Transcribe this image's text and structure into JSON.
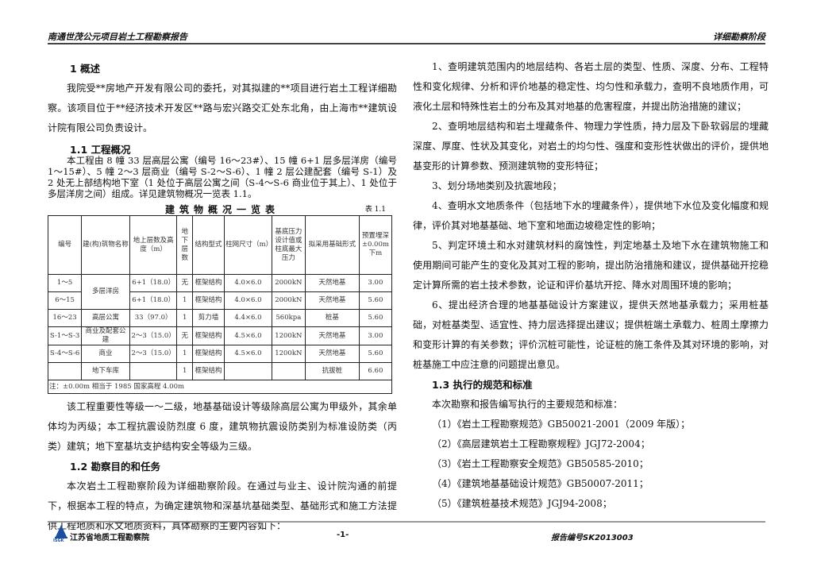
{
  "header": {
    "left": "南通世茂公元项目岩土工程勘察报告",
    "right": "详细勘察阶段"
  },
  "footer": {
    "org": "江苏省地质工程勘察院",
    "logo_text": "JSGK",
    "page": "-1-",
    "report_no": "报告编号SK2013003"
  },
  "left": {
    "h1": "1 概述",
    "p1": "我院受**房地产开发有限公司的委托，对其拟建的**项目进行岩土工程详细勘察。该项目位于**经济技术开发区**路与宏兴路交汇处东北角，由上海市**建筑设计院有限公司负责设计。",
    "h11": "1.1 工程概况",
    "p11": "本工程由 8 幢 33 层高层公寓（编号 16～23#）、15 幢 6+1 层多层洋房（编号 1～15#）、5 幢 2～3 层商业（编号 S-2～S-6）、1 幢 2 层公建配套（编号 S-1）及 2 处无上部结构地下室（1 处位于高层公寓之间（S-4～S-6 商业位于其上）、1 处位于多层洋房之间）组成。详见建筑物概况一览表 1.1。",
    "table_title": "建筑物概况一览表",
    "table_no": "表 1.1",
    "table": {
      "headers": [
        "编号",
        "建(构)筑物名称",
        "地上层数及高度（m）",
        "地下层数",
        "结构型式",
        "柱网尺寸（m）",
        "基底压力设计值或柱底最大压力",
        "拟采用基础形式",
        "预置埋深±0.00m下m"
      ],
      "rows": [
        [
          "1～5",
          "多层洋房",
          "6+1（18.0）",
          "无",
          "框架结构",
          "4.0×6.0",
          "2000kN",
          "天然地基",
          "3.00"
        ],
        [
          "6～15",
          "",
          "6+1（18.0）",
          "1",
          "框架结构",
          "4.0×6.0",
          "2000kN",
          "天然地基",
          "5.60"
        ],
        [
          "16～23",
          "高层公寓",
          "33（97.0）",
          "1",
          "剪力墙",
          "4.4×6.0",
          "560kpa",
          "桩基",
          "5.60"
        ],
        [
          "S-1～S-3",
          "商业及配套公建",
          "2～3（15.0）",
          "无",
          "框架结构",
          "4.5×6.0",
          "1200kN",
          "天然地基",
          "3.00"
        ],
        [
          "S-4～S-6",
          "商业",
          "2～3（15.0）",
          "1",
          "框架结构",
          "4.5×6.0",
          "1200kN",
          "天然地基",
          "5.60"
        ],
        [
          "",
          "地下车库",
          "",
          "1",
          "框架结构",
          "",
          "",
          "抗拔桩",
          "6.60"
        ]
      ],
      "note": "注：±0.00m 相当于 1985 国家高程 4.00m"
    },
    "p12": "该工程重要性等级一～二级，地基基础设计等级除高层公寓为甲级外，其余单体均为丙级；本工程抗震设防烈度 6 度，建筑物抗震设防类别为标准设防类（丙类）建筑；地下室基坑支护结构安全等级为三级。",
    "h12": "1.2 勘察目的和任务",
    "p13": "本次岩土工程勘察阶段为详细勘察阶段。在通过与业主、设计院沟通的前提下，根据本工程的特点，为确定建筑物和深基坑基础类型、基础形式和施工方法提供工程地质和水文地质资料，具体勘察的主要内容如下："
  },
  "right": {
    "items": [
      "1、查明建筑范围内的地层结构、各岩土层的类型、性质、深度、分布、工程特性和变化规律、分析和评价地基的稳定性、均匀性和承载力，查明不良地质作用，可液化土层和特殊性岩土的分布及其对地基的危害程度，并提出防治措施的建议；",
      "2、查明地层结构和岩土埋藏条件、物理力学性质，持力层及下卧软弱层的埋藏深度、厚度、性状及其变化，对岩土的均匀性、强度和变形性状做出的评价，提供地基变形的计算参数、预测建筑物的变形特征；",
      "3、划分场地类别及抗震地段；",
      "4、查明水文地质条件（包括地下水的埋藏条件），提供地下水位及变化幅度和规律，评价其对地基基础、地下室和地面边坡稳定性的影响；",
      "5、判定环境土和水对建筑材料的腐蚀性，判定地基土及地下水在建筑物施工和使用期间可能产生的变化及其对工程的影响，提出防治措施和建议，提供基础开挖稳定计算所需的岩土技术参数，论证和评价基坑开挖、降水对周围环境的影响；",
      "6、提出经济合理的地基基础设计方案建议，提供天然地基承载力；采用桩基础，对桩基类型、适宜性、持力层选择提出建议；提供桩端土承载力、桩周土摩擦力和变形计算的有关参数；评价沉桩可能性，论证桩的施工条件及其对环境的影响，对桩基施工中应注意的问题提出意见。"
    ],
    "h13": "1.3 执行的规范和标准",
    "p_intro": "本次勘察和报告编写执行的主要规范和标准：",
    "standards": [
      "（1）《岩土工程勘察规范》GB50021-2001（2009 年版）；",
      "（2）《高层建筑岩土工程勘察规程》JGJ72-2004；",
      "（3）《岩土工程勘察安全规范》GB50585-2010；",
      "（4）《建筑地基基础设计规范》GB50007-2011；",
      "（5）《建筑桩基技术规范》JGJ94-2008；"
    ]
  }
}
